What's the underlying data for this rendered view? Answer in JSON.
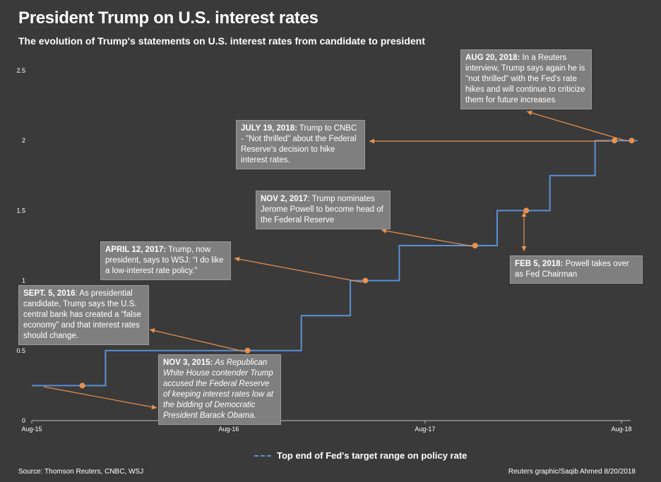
{
  "header": {
    "title": "President Trump on U.S. interest rates",
    "subtitle": "The evolution of Trump's statements on U.S. interest rates from candidate to president"
  },
  "chart_data": {
    "type": "line",
    "series": [
      {
        "name": "Top end of Fed's target range on policy rate",
        "color": "#5b8fd6",
        "step": true,
        "points": [
          {
            "x": "2015-08-01",
            "y": 0.25
          },
          {
            "x": "2015-12-16",
            "y": 0.5
          },
          {
            "x": "2016-12-14",
            "y": 0.75
          },
          {
            "x": "2017-03-15",
            "y": 1.0
          },
          {
            "x": "2017-06-14",
            "y": 1.25
          },
          {
            "x": "2017-12-13",
            "y": 1.5
          },
          {
            "x": "2018-03-21",
            "y": 1.75
          },
          {
            "x": "2018-06-13",
            "y": 2.0
          },
          {
            "x": "2018-08-31",
            "y": 2.0
          }
        ]
      }
    ],
    "markers": [
      {
        "x": "2015-11-03",
        "y": 0.25
      },
      {
        "x": "2016-09-05",
        "y": 0.5
      },
      {
        "x": "2017-04-12",
        "y": 1.0
      },
      {
        "x": "2017-11-02",
        "y": 1.25
      },
      {
        "x": "2018-02-05",
        "y": 1.5
      },
      {
        "x": "2018-07-19",
        "y": 2.0
      },
      {
        "x": "2018-08-20",
        "y": 2.0
      }
    ],
    "x_ticks": [
      "Aug-15",
      "Aug-16",
      "Aug-17",
      "Aug-18"
    ],
    "x_tick_dates": [
      "2015-08-01",
      "2016-08-01",
      "2017-08-01",
      "2018-08-01"
    ],
    "y_ticks": [
      "0",
      "0.5",
      "1",
      "1.5",
      "2",
      "2.5"
    ],
    "ylim": [
      0,
      2.5
    ],
    "grid": false,
    "legend_position": "bottom",
    "marker_color": "#e8914f",
    "annotation_color": "#e8914f",
    "annotations": [
      {
        "id": "sep2016",
        "date": "SEPT. 5, 2016",
        "text": ": As presidential candidate, Trump says the U.S. central bank has created a “false economy” and that interest rates should change.",
        "italic": false
      },
      {
        "id": "nov2015",
        "date": "NOV 3, 2015:",
        "text": " As Republican White House contender Trump accused the Federal Reserve of keeping interest rates low at the bidding of Democratic President Barack Obama.",
        "italic": true
      },
      {
        "id": "apr2017",
        "date": "APRIL 12, 2017:",
        "text": " Trump, now president, says to WSJ: “I do like a low-interest rate policy.”",
        "italic": false
      },
      {
        "id": "nov2017",
        "date": "NOV 2, 2017",
        "text": ": Trump nominates Jerome Powell to become head of the Federal Reserve",
        "italic": false
      },
      {
        "id": "feb2018",
        "date": "FEB 5, 2018:",
        "text": " Powell takes over as Fed Chairman",
        "italic": false
      },
      {
        "id": "jul2018",
        "date": "JULY 19, 2018:",
        "text": " Trump to CNBC - \"Not thrilled\" about the Federal Reserve's decision to hike interest rates.",
        "italic": false
      },
      {
        "id": "aug2018",
        "date": "AUG 20, 2018:",
        "text": "  In a Reuters interview, Trump says again he is \"not thrilled\" with the Fed's rate hikes and will continue to criticize them for future increases",
        "italic": false
      }
    ]
  },
  "legend": {
    "label": "Top end of Fed's target range on policy rate"
  },
  "footer": {
    "source": "Source: Thomson Reuters, CNBC, WSJ",
    "credit": "Reuters graphic/Saqib Ahmed 8/20/2018"
  }
}
